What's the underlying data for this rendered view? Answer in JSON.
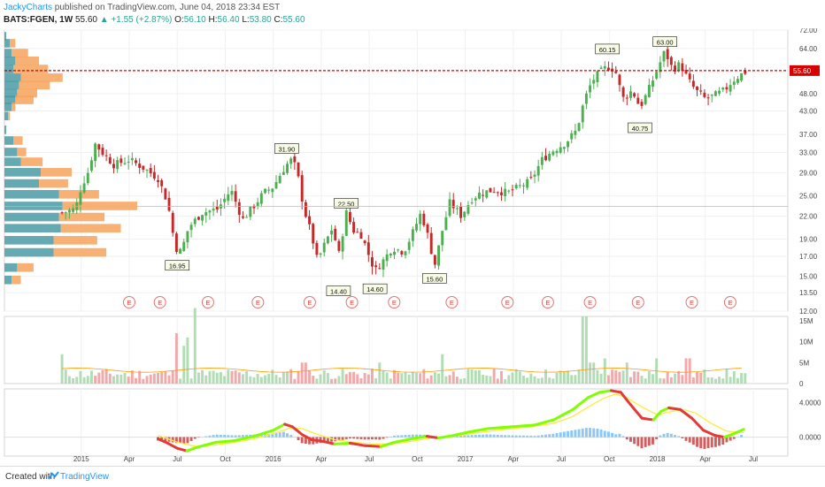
{
  "header": {
    "author": "JackyCharts",
    "published": "published on TradingView.com, June 04, 2018 23:34 EST",
    "symbol": "BATS:FGEN, 1W",
    "last": "55.60",
    "change": "+1.55 (+2.87%)",
    "o_label": "O:",
    "o": "56.10",
    "h_label": "H:",
    "h": "56.40",
    "l_label": "L:",
    "l": "53.80",
    "c_label": "C:",
    "c": "55.60"
  },
  "footer": {
    "created": "Created with",
    "brand": "TradingView"
  },
  "colors": {
    "up": "#26a69a",
    "down": "#ef5350",
    "upCandle": "#4caf50",
    "downCandle": "#c62828",
    "price_line": "#d50000",
    "vp_up": "#4a9aa5",
    "vp_down": "#f7a35c",
    "macd_up": "#7fff00",
    "macd_down": "#e53935"
  },
  "chart_data": [
    {
      "type": "candlestick",
      "title": "BATS:FGEN, 1W",
      "ylim": [
        12.0,
        72.0
      ],
      "y_scale": "log",
      "y_ticks": [
        "72.00",
        "64.00",
        "55.60",
        "48.00",
        "43.00",
        "37.00",
        "33.00",
        "29.00",
        "25.00",
        "22.00",
        "19.00",
        "17.00",
        "15.00",
        "13.50",
        "12.00"
      ],
      "x_ticks": [
        "2015",
        "Apr",
        "Jul",
        "Oct",
        "2016",
        "Apr",
        "Jul",
        "Oct",
        "2017",
        "Apr",
        "Jul",
        "Oct",
        "2018",
        "Apr",
        "Jul"
      ],
      "last_price": 55.6,
      "price_path": [
        [
          2014.9,
          22.5
        ],
        [
          2014.97,
          23.0
        ],
        [
          2015.0,
          26.5
        ],
        [
          2015.04,
          29.5
        ],
        [
          2015.07,
          35.0
        ],
        [
          2015.11,
          33.0
        ],
        [
          2015.17,
          30.5
        ],
        [
          2015.25,
          31.5
        ],
        [
          2015.32,
          30.0
        ],
        [
          2015.4,
          28.0
        ],
        [
          2015.45,
          24.0
        ],
        [
          2015.49,
          18.0
        ],
        [
          2015.52,
          17.5
        ],
        [
          2015.56,
          20.5
        ],
        [
          2015.63,
          22.5
        ],
        [
          2015.71,
          23.0
        ],
        [
          2015.78,
          26.0
        ],
        [
          2015.84,
          21.5
        ],
        [
          2015.9,
          23.5
        ],
        [
          2015.95,
          25.5
        ],
        [
          2016.0,
          26.5
        ],
        [
          2016.05,
          29.5
        ],
        [
          2016.09,
          31.5
        ],
        [
          2016.12,
          30.0
        ],
        [
          2016.16,
          23.0
        ],
        [
          2016.2,
          19.5
        ],
        [
          2016.23,
          16.5
        ],
        [
          2016.27,
          18.5
        ],
        [
          2016.31,
          20.5
        ],
        [
          2016.34,
          17.0
        ],
        [
          2016.38,
          22.5
        ],
        [
          2016.42,
          20.0
        ],
        [
          2016.46,
          19.5
        ],
        [
          2016.5,
          17.0
        ],
        [
          2016.53,
          15.5
        ],
        [
          2016.57,
          16.5
        ],
        [
          2016.62,
          18.0
        ],
        [
          2016.68,
          17.5
        ],
        [
          2016.73,
          20.0
        ],
        [
          2016.77,
          22.5
        ],
        [
          2016.81,
          19.0
        ],
        [
          2016.84,
          16.0
        ],
        [
          2016.88,
          20.0
        ],
        [
          2016.92,
          24.0
        ],
        [
          2016.98,
          22.0
        ],
        [
          2017.03,
          24.5
        ],
        [
          2017.08,
          25.5
        ],
        [
          2017.15,
          26.0
        ],
        [
          2017.22,
          25.5
        ],
        [
          2017.28,
          26.5
        ],
        [
          2017.34,
          27.5
        ],
        [
          2017.4,
          31.5
        ],
        [
          2017.46,
          33.5
        ],
        [
          2017.52,
          35.0
        ],
        [
          2017.58,
          38.0
        ],
        [
          2017.62,
          46.0
        ],
        [
          2017.66,
          52.0
        ],
        [
          2017.7,
          55.0
        ],
        [
          2017.74,
          57.0
        ],
        [
          2017.78,
          56.0
        ],
        [
          2017.82,
          46.5
        ],
        [
          2017.87,
          49.0
        ],
        [
          2017.91,
          44.0
        ],
        [
          2017.95,
          48.5
        ],
        [
          2018.0,
          56.0
        ],
        [
          2018.04,
          63.0
        ],
        [
          2018.08,
          56.0
        ],
        [
          2018.12,
          58.0
        ],
        [
          2018.16,
          52.5
        ],
        [
          2018.2,
          49.0
        ],
        [
          2018.25,
          46.5
        ],
        [
          2018.3,
          47.5
        ],
        [
          2018.35,
          49.0
        ],
        [
          2018.39,
          52.0
        ],
        [
          2018.43,
          54.0
        ],
        [
          2018.47,
          55.6
        ]
      ],
      "annotations": [
        {
          "text": "16.95",
          "x": 2015.5,
          "y": 16.95,
          "pos": "below"
        },
        {
          "text": "31.90",
          "x": 2016.07,
          "y": 31.9,
          "pos": "above"
        },
        {
          "text": "22.50",
          "x": 2016.38,
          "y": 22.5,
          "pos": "above"
        },
        {
          "text": "14.40",
          "x": 2016.34,
          "y": 14.4,
          "pos": "below"
        },
        {
          "text": "14.60",
          "x": 2016.53,
          "y": 14.6,
          "pos": "below"
        },
        {
          "text": "15.60",
          "x": 2016.84,
          "y": 15.6,
          "pos": "below"
        },
        {
          "text": "60.15",
          "x": 2017.74,
          "y": 60.15,
          "pos": "above"
        },
        {
          "text": "40.75",
          "x": 2017.91,
          "y": 40.75,
          "pos": "below"
        },
        {
          "text": "63.00",
          "x": 2018.04,
          "y": 63.0,
          "pos": "above"
        }
      ],
      "earnings_markers": {
        "label": "E",
        "x": [
          2015.25,
          2015.41,
          2015.66,
          2015.92,
          2016.19,
          2016.41,
          2016.63,
          2016.93,
          2017.22,
          2017.43,
          2017.65,
          2017.9,
          2018.18,
          2018.38
        ]
      }
    },
    {
      "type": "volume_profile",
      "rows": [
        {
          "price": 69,
          "up": 2,
          "down": 0
        },
        {
          "price": 66,
          "up": 6,
          "down": 6
        },
        {
          "price": 62,
          "up": 8,
          "down": 18
        },
        {
          "price": 59,
          "up": 12,
          "down": 26
        },
        {
          "price": 56,
          "up": 10,
          "down": 38
        },
        {
          "price": 53,
          "up": 18,
          "down": 46
        },
        {
          "price": 50.5,
          "up": 16,
          "down": 34
        },
        {
          "price": 48,
          "up": 14,
          "down": 22
        },
        {
          "price": 46,
          "up": 12,
          "down": 20
        },
        {
          "price": 44,
          "up": 8,
          "down": 4
        },
        {
          "price": 41.5,
          "up": 4,
          "down": 2
        },
        {
          "price": 38,
          "up": 2,
          "down": 0
        },
        {
          "price": 35.5,
          "up": 10,
          "down": 10
        },
        {
          "price": 33,
          "up": 14,
          "down": 10
        },
        {
          "price": 31,
          "up": 18,
          "down": 24
        },
        {
          "price": 29,
          "up": 40,
          "down": 34
        },
        {
          "price": 27,
          "up": 38,
          "down": 32
        },
        {
          "price": 25.2,
          "up": 60,
          "down": 44
        },
        {
          "price": 23.4,
          "up": 64,
          "down": 82
        },
        {
          "price": 21.8,
          "up": 60,
          "down": 50
        },
        {
          "price": 20.3,
          "up": 62,
          "down": 66
        },
        {
          "price": 18.8,
          "up": 54,
          "down": 48
        },
        {
          "price": 17.4,
          "up": 54,
          "down": 58
        },
        {
          "price": 15.8,
          "up": 14,
          "down": 18
        },
        {
          "price": 14.6,
          "up": 8,
          "down": 10
        }
      ]
    },
    {
      "type": "bar",
      "name": "Volume",
      "ylim": [
        0,
        16
      ],
      "y_ticks": [
        "15M",
        "10M",
        "5M",
        "0"
      ],
      "spikes": [
        [
          2014.9,
          7
        ],
        [
          2015.49,
          12
        ],
        [
          2015.53,
          9
        ],
        [
          2015.56,
          11
        ],
        [
          2015.59,
          18
        ],
        [
          2016.16,
          5
        ],
        [
          2016.55,
          5
        ],
        [
          2016.88,
          7
        ],
        [
          2017.62,
          16
        ],
        [
          2017.66,
          5
        ],
        [
          2017.72,
          6
        ],
        [
          2017.84,
          5
        ],
        [
          2018.0,
          6
        ],
        [
          2018.16,
          6
        ]
      ]
    },
    {
      "type": "line",
      "name": "MACD",
      "ylim": [
        -2.2,
        5.6
      ],
      "y_ticks": [
        "4.0000",
        "0.0000"
      ],
      "macd": [
        [
          2015.4,
          -0.2
        ],
        [
          2015.45,
          -0.7
        ],
        [
          2015.5,
          -1.3
        ],
        [
          2015.55,
          -1.6
        ],
        [
          2015.6,
          -1.2
        ],
        [
          2015.7,
          -0.6
        ],
        [
          2015.8,
          -0.4
        ],
        [
          2015.9,
          0.1
        ],
        [
          2016.0,
          0.8
        ],
        [
          2016.06,
          1.5
        ],
        [
          2016.1,
          1.2
        ],
        [
          2016.15,
          0.3
        ],
        [
          2016.2,
          -0.3
        ],
        [
          2016.26,
          -0.5
        ],
        [
          2016.32,
          -0.8
        ],
        [
          2016.4,
          -0.7
        ],
        [
          2016.48,
          -1.0
        ],
        [
          2016.56,
          -1.1
        ],
        [
          2016.63,
          -0.6
        ],
        [
          2016.72,
          -0.2
        ],
        [
          2016.8,
          0.1
        ],
        [
          2016.86,
          -0.1
        ],
        [
          2016.94,
          0.2
        ],
        [
          2017.02,
          0.6
        ],
        [
          2017.12,
          1.0
        ],
        [
          2017.24,
          1.2
        ],
        [
          2017.36,
          1.4
        ],
        [
          2017.46,
          2.0
        ],
        [
          2017.56,
          3.2
        ],
        [
          2017.64,
          4.6
        ],
        [
          2017.7,
          5.2
        ],
        [
          2017.76,
          5.4
        ],
        [
          2017.81,
          5.2
        ],
        [
          2017.86,
          3.8
        ],
        [
          2017.92,
          2.2
        ],
        [
          2017.98,
          2.0
        ],
        [
          2018.02,
          3.0
        ],
        [
          2018.06,
          3.4
        ],
        [
          2018.12,
          3.2
        ],
        [
          2018.18,
          2.2
        ],
        [
          2018.24,
          0.8
        ],
        [
          2018.3,
          0.2
        ],
        [
          2018.35,
          0.0
        ],
        [
          2018.4,
          0.4
        ],
        [
          2018.45,
          0.9
        ]
      ],
      "signal": [
        [
          2015.4,
          0.2
        ],
        [
          2015.5,
          -0.6
        ],
        [
          2015.6,
          -1.1
        ],
        [
          2015.7,
          -0.9
        ],
        [
          2015.8,
          -0.6
        ],
        [
          2015.9,
          -0.2
        ],
        [
          2016.0,
          0.4
        ],
        [
          2016.08,
          1.0
        ],
        [
          2016.15,
          1.0
        ],
        [
          2016.22,
          0.4
        ],
        [
          2016.32,
          -0.3
        ],
        [
          2016.42,
          -0.6
        ],
        [
          2016.52,
          -0.8
        ],
        [
          2016.62,
          -0.8
        ],
        [
          2016.72,
          -0.5
        ],
        [
          2016.82,
          -0.1
        ],
        [
          2016.94,
          0.1
        ],
        [
          2017.06,
          0.5
        ],
        [
          2017.2,
          0.9
        ],
        [
          2017.34,
          1.2
        ],
        [
          2017.46,
          1.6
        ],
        [
          2017.56,
          2.4
        ],
        [
          2017.64,
          3.5
        ],
        [
          2017.72,
          4.5
        ],
        [
          2017.78,
          5.0
        ],
        [
          2017.84,
          4.6
        ],
        [
          2017.92,
          3.5
        ],
        [
          2018.0,
          2.6
        ],
        [
          2018.08,
          3.0
        ],
        [
          2018.14,
          3.2
        ],
        [
          2018.2,
          2.8
        ],
        [
          2018.28,
          1.6
        ],
        [
          2018.36,
          0.7
        ],
        [
          2018.45,
          0.5
        ]
      ]
    }
  ]
}
